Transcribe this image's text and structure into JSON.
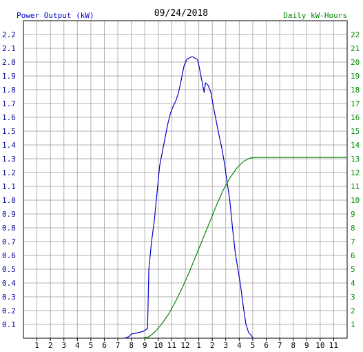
{
  "chart_data": {
    "type": "line",
    "date": "09/24/2018",
    "left_axis_title": "Power Output (kW)",
    "right_axis_title": "Daily kW-Hours",
    "x_ticks": [
      "1",
      "2",
      "3",
      "4",
      "5",
      "6",
      "7",
      "8",
      "9",
      "10",
      "11",
      "12",
      "1",
      "2",
      "3",
      "4",
      "5",
      "6",
      "7",
      "8",
      "9",
      "10",
      "11"
    ],
    "y_left_ticks": [
      "0.1",
      "0.2",
      "0.3",
      "0.4",
      "0.5",
      "0.6",
      "0.7",
      "0.8",
      "0.9",
      "1.0",
      "1.1",
      "1.2",
      "1.3",
      "1.4",
      "1.5",
      "1.6",
      "1.7",
      "1.8",
      "1.9",
      "2.0",
      "2.1",
      "2.2"
    ],
    "y_right_ticks": [
      "1",
      "2",
      "3",
      "4",
      "5",
      "6",
      "7",
      "8",
      "9",
      "10",
      "11",
      "12",
      "13",
      "14",
      "15",
      "16",
      "17",
      "18",
      "19",
      "20",
      "21",
      "22"
    ],
    "xlim": [
      0,
      24
    ],
    "ylim_left": [
      0,
      2.3
    ],
    "ylim_right": [
      0,
      23
    ],
    "grid": true,
    "series": [
      {
        "axis": "left",
        "color": "#0000cc",
        "points": [
          [
            7.5,
            0
          ],
          [
            7.8,
            0.01
          ],
          [
            8.0,
            0.03
          ],
          [
            8.5,
            0.04
          ],
          [
            8.9,
            0.05
          ],
          [
            9.2,
            0.07
          ],
          [
            9.3,
            0.5
          ],
          [
            9.5,
            0.7
          ],
          [
            9.7,
            0.85
          ],
          [
            9.9,
            1.05
          ],
          [
            10.1,
            1.25
          ],
          [
            10.3,
            1.35
          ],
          [
            10.5,
            1.45
          ],
          [
            10.7,
            1.55
          ],
          [
            10.9,
            1.63
          ],
          [
            11.1,
            1.68
          ],
          [
            11.3,
            1.72
          ],
          [
            11.5,
            1.78
          ],
          [
            11.7,
            1.87
          ],
          [
            11.9,
            1.97
          ],
          [
            12.1,
            2.02
          ],
          [
            12.3,
            2.03
          ],
          [
            12.5,
            2.04
          ],
          [
            12.7,
            2.03
          ],
          [
            12.9,
            2.02
          ],
          [
            13.0,
            1.98
          ],
          [
            13.2,
            1.88
          ],
          [
            13.4,
            1.78
          ],
          [
            13.5,
            1.85
          ],
          [
            13.7,
            1.83
          ],
          [
            13.9,
            1.78
          ],
          [
            14.1,
            1.67
          ],
          [
            14.3,
            1.57
          ],
          [
            14.5,
            1.47
          ],
          [
            14.7,
            1.38
          ],
          [
            14.9,
            1.27
          ],
          [
            15.1,
            1.13
          ],
          [
            15.3,
            1.0
          ],
          [
            15.5,
            0.8
          ],
          [
            15.7,
            0.62
          ],
          [
            15.9,
            0.5
          ],
          [
            16.1,
            0.38
          ],
          [
            16.3,
            0.23
          ],
          [
            16.5,
            0.1
          ],
          [
            16.7,
            0.04
          ],
          [
            16.9,
            0.02
          ],
          [
            17.0,
            0.0
          ]
        ]
      },
      {
        "axis": "right",
        "color": "#008800",
        "points": [
          [
            8.8,
            0
          ],
          [
            9.3,
            0.1
          ],
          [
            9.8,
            0.5
          ],
          [
            10.3,
            1.1
          ],
          [
            10.8,
            1.8
          ],
          [
            11.3,
            2.7
          ],
          [
            11.8,
            3.7
          ],
          [
            12.3,
            4.8
          ],
          [
            12.8,
            6.0
          ],
          [
            13.3,
            7.2
          ],
          [
            13.8,
            8.4
          ],
          [
            14.3,
            9.6
          ],
          [
            14.8,
            10.7
          ],
          [
            15.3,
            11.6
          ],
          [
            15.8,
            12.3
          ],
          [
            16.3,
            12.8
          ],
          [
            16.8,
            13.05
          ],
          [
            17.3,
            13.1
          ],
          [
            18.0,
            13.1
          ],
          [
            24.0,
            13.1
          ]
        ]
      }
    ]
  }
}
